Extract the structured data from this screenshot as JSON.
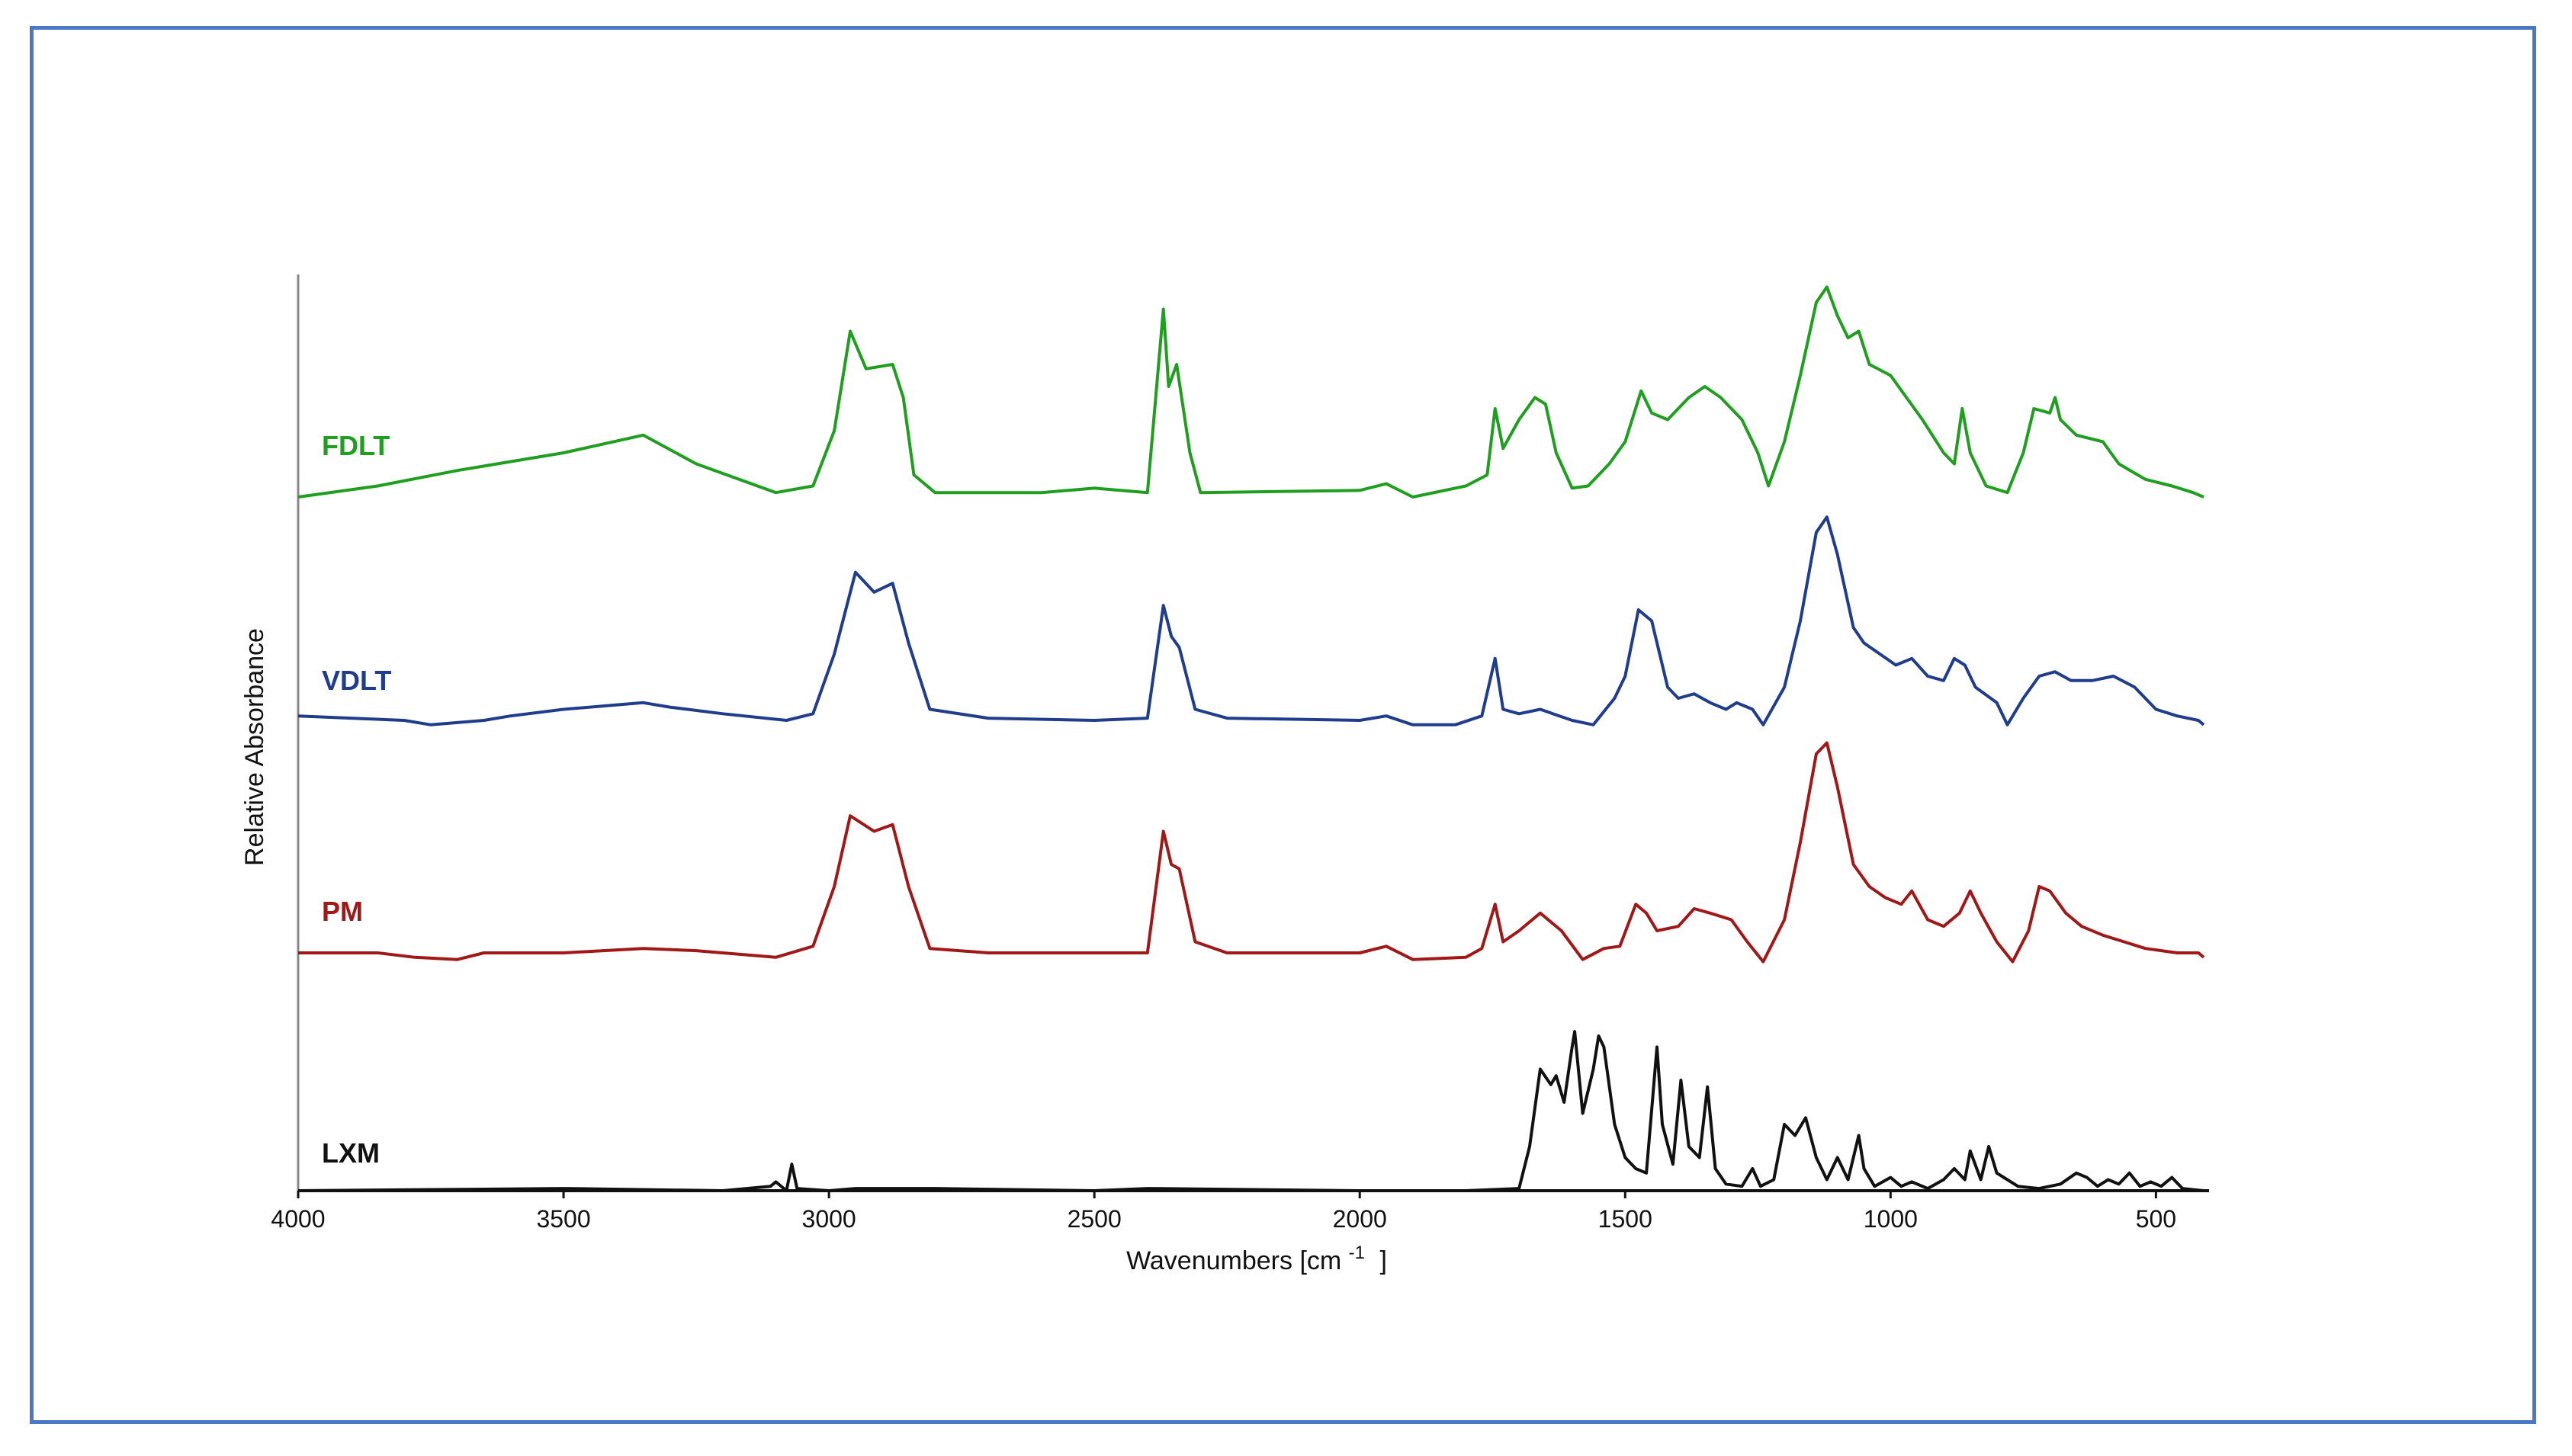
{
  "chart_data": {
    "type": "line",
    "title": "",
    "xlabel": "Wavenumbers [cm",
    "xlabel_sup": "-1",
    "xlabel_tail": "]",
    "ylabel": "Relative Absorbance",
    "xlim": [
      4000,
      400
    ],
    "x_reversed": true,
    "x_ticks": [
      4000,
      3500,
      3000,
      2500,
      2000,
      1500,
      1000,
      500
    ],
    "x_tick_labels": [
      "4000",
      "3500",
      "3000",
      "2500",
      "2000",
      "1500",
      "1000",
      "500"
    ],
    "y_ticks": "none",
    "grid": false,
    "legend": "inline labels at left of each trace",
    "series": [
      {
        "name": "FDLT",
        "color": "#1f9e1f",
        "offset": 3,
        "points": [
          [
            4000,
            0.0
          ],
          [
            3850,
            0.05
          ],
          [
            3700,
            0.12
          ],
          [
            3500,
            0.2
          ],
          [
            3350,
            0.28
          ],
          [
            3250,
            0.15
          ],
          [
            3100,
            0.02
          ],
          [
            3030,
            0.05
          ],
          [
            2990,
            0.3
          ],
          [
            2960,
            0.75
          ],
          [
            2930,
            0.58
          ],
          [
            2880,
            0.6
          ],
          [
            2860,
            0.45
          ],
          [
            2840,
            0.1
          ],
          [
            2800,
            0.02
          ],
          [
            2600,
            0.02
          ],
          [
            2500,
            0.04
          ],
          [
            2400,
            0.02
          ],
          [
            2370,
            0.85
          ],
          [
            2360,
            0.5
          ],
          [
            2345,
            0.6
          ],
          [
            2320,
            0.2
          ],
          [
            2300,
            0.02
          ],
          [
            2000,
            0.03
          ],
          [
            1950,
            0.06
          ],
          [
            1900,
            0.0
          ],
          [
            1800,
            0.05
          ],
          [
            1760,
            0.1
          ],
          [
            1745,
            0.4
          ],
          [
            1730,
            0.22
          ],
          [
            1700,
            0.35
          ],
          [
            1670,
            0.45
          ],
          [
            1650,
            0.42
          ],
          [
            1630,
            0.2
          ],
          [
            1600,
            0.04
          ],
          [
            1570,
            0.05
          ],
          [
            1530,
            0.15
          ],
          [
            1500,
            0.25
          ],
          [
            1470,
            0.48
          ],
          [
            1450,
            0.38
          ],
          [
            1420,
            0.35
          ],
          [
            1380,
            0.45
          ],
          [
            1350,
            0.5
          ],
          [
            1320,
            0.45
          ],
          [
            1280,
            0.35
          ],
          [
            1250,
            0.2
          ],
          [
            1230,
            0.05
          ],
          [
            1200,
            0.25
          ],
          [
            1170,
            0.55
          ],
          [
            1140,
            0.88
          ],
          [
            1120,
            0.95
          ],
          [
            1100,
            0.82
          ],
          [
            1080,
            0.72
          ],
          [
            1060,
            0.75
          ],
          [
            1040,
            0.6
          ],
          [
            1000,
            0.55
          ],
          [
            970,
            0.45
          ],
          [
            940,
            0.35
          ],
          [
            900,
            0.2
          ],
          [
            880,
            0.15
          ],
          [
            865,
            0.4
          ],
          [
            850,
            0.2
          ],
          [
            820,
            0.05
          ],
          [
            780,
            0.02
          ],
          [
            750,
            0.2
          ],
          [
            730,
            0.4
          ],
          [
            700,
            0.38
          ],
          [
            690,
            0.45
          ],
          [
            680,
            0.35
          ],
          [
            650,
            0.28
          ],
          [
            600,
            0.25
          ],
          [
            570,
            0.15
          ],
          [
            520,
            0.08
          ],
          [
            470,
            0.05
          ],
          [
            430,
            0.02
          ],
          [
            410,
            0.0
          ]
        ]
      },
      {
        "name": "VDLT",
        "color": "#1f3d8c",
        "offset": 2,
        "points": [
          [
            4000,
            0.02
          ],
          [
            3800,
            0.0
          ],
          [
            3750,
            -0.02
          ],
          [
            3650,
            0.0
          ],
          [
            3600,
            0.02
          ],
          [
            3500,
            0.05
          ],
          [
            3350,
            0.08
          ],
          [
            3300,
            0.06
          ],
          [
            3200,
            0.03
          ],
          [
            3080,
            0.0
          ],
          [
            3030,
            0.03
          ],
          [
            2990,
            0.3
          ],
          [
            2950,
            0.67
          ],
          [
            2915,
            0.58
          ],
          [
            2880,
            0.62
          ],
          [
            2850,
            0.35
          ],
          [
            2810,
            0.05
          ],
          [
            2700,
            0.01
          ],
          [
            2500,
            0.0
          ],
          [
            2400,
            0.01
          ],
          [
            2370,
            0.52
          ],
          [
            2355,
            0.38
          ],
          [
            2340,
            0.33
          ],
          [
            2310,
            0.05
          ],
          [
            2250,
            0.01
          ],
          [
            2000,
            0.0
          ],
          [
            1950,
            0.02
          ],
          [
            1900,
            -0.02
          ],
          [
            1820,
            -0.02
          ],
          [
            1770,
            0.02
          ],
          [
            1745,
            0.28
          ],
          [
            1730,
            0.05
          ],
          [
            1700,
            0.03
          ],
          [
            1660,
            0.05
          ],
          [
            1600,
            0.0
          ],
          [
            1560,
            -0.02
          ],
          [
            1520,
            0.1
          ],
          [
            1500,
            0.2
          ],
          [
            1475,
            0.5
          ],
          [
            1450,
            0.45
          ],
          [
            1420,
            0.15
          ],
          [
            1400,
            0.1
          ],
          [
            1370,
            0.12
          ],
          [
            1340,
            0.08
          ],
          [
            1310,
            0.05
          ],
          [
            1290,
            0.08
          ],
          [
            1260,
            0.05
          ],
          [
            1240,
            -0.02
          ],
          [
            1200,
            0.15
          ],
          [
            1170,
            0.45
          ],
          [
            1140,
            0.85
          ],
          [
            1120,
            0.92
          ],
          [
            1100,
            0.75
          ],
          [
            1070,
            0.42
          ],
          [
            1050,
            0.35
          ],
          [
            1020,
            0.3
          ],
          [
            990,
            0.25
          ],
          [
            960,
            0.28
          ],
          [
            930,
            0.2
          ],
          [
            900,
            0.18
          ],
          [
            880,
            0.28
          ],
          [
            860,
            0.25
          ],
          [
            840,
            0.15
          ],
          [
            800,
            0.08
          ],
          [
            780,
            -0.02
          ],
          [
            750,
            0.1
          ],
          [
            720,
            0.2
          ],
          [
            690,
            0.22
          ],
          [
            660,
            0.18
          ],
          [
            620,
            0.18
          ],
          [
            580,
            0.2
          ],
          [
            540,
            0.15
          ],
          [
            500,
            0.05
          ],
          [
            460,
            0.02
          ],
          [
            420,
            0.0
          ],
          [
            410,
            -0.02
          ]
        ]
      },
      {
        "name": "PM",
        "color": "#a01818",
        "offset": 1,
        "points": [
          [
            4000,
            0.0
          ],
          [
            3850,
            0.0
          ],
          [
            3780,
            -0.02
          ],
          [
            3700,
            -0.03
          ],
          [
            3650,
            0.0
          ],
          [
            3500,
            0.0
          ],
          [
            3350,
            0.02
          ],
          [
            3250,
            0.01
          ],
          [
            3100,
            -0.02
          ],
          [
            3030,
            0.03
          ],
          [
            2990,
            0.3
          ],
          [
            2960,
            0.62
          ],
          [
            2915,
            0.55
          ],
          [
            2880,
            0.58
          ],
          [
            2850,
            0.3
          ],
          [
            2810,
            0.02
          ],
          [
            2700,
            0.0
          ],
          [
            2500,
            0.0
          ],
          [
            2400,
            0.0
          ],
          [
            2370,
            0.55
          ],
          [
            2355,
            0.4
          ],
          [
            2340,
            0.38
          ],
          [
            2310,
            0.05
          ],
          [
            2250,
            0.0
          ],
          [
            2000,
            0.0
          ],
          [
            1950,
            0.03
          ],
          [
            1900,
            -0.03
          ],
          [
            1800,
            -0.02
          ],
          [
            1770,
            0.02
          ],
          [
            1745,
            0.22
          ],
          [
            1730,
            0.05
          ],
          [
            1700,
            0.1
          ],
          [
            1660,
            0.18
          ],
          [
            1620,
            0.1
          ],
          [
            1580,
            -0.03
          ],
          [
            1540,
            0.02
          ],
          [
            1510,
            0.03
          ],
          [
            1480,
            0.22
          ],
          [
            1460,
            0.18
          ],
          [
            1440,
            0.1
          ],
          [
            1400,
            0.12
          ],
          [
            1370,
            0.2
          ],
          [
            1340,
            0.18
          ],
          [
            1300,
            0.15
          ],
          [
            1270,
            0.05
          ],
          [
            1240,
            -0.04
          ],
          [
            1200,
            0.15
          ],
          [
            1170,
            0.5
          ],
          [
            1140,
            0.9
          ],
          [
            1120,
            0.95
          ],
          [
            1100,
            0.75
          ],
          [
            1070,
            0.4
          ],
          [
            1040,
            0.3
          ],
          [
            1010,
            0.25
          ],
          [
            980,
            0.22
          ],
          [
            960,
            0.28
          ],
          [
            930,
            0.15
          ],
          [
            900,
            0.12
          ],
          [
            870,
            0.18
          ],
          [
            850,
            0.28
          ],
          [
            830,
            0.18
          ],
          [
            800,
            0.05
          ],
          [
            770,
            -0.04
          ],
          [
            740,
            0.1
          ],
          [
            720,
            0.3
          ],
          [
            700,
            0.28
          ],
          [
            670,
            0.18
          ],
          [
            640,
            0.12
          ],
          [
            600,
            0.08
          ],
          [
            560,
            0.05
          ],
          [
            520,
            0.02
          ],
          [
            460,
            0.0
          ],
          [
            420,
            0.0
          ],
          [
            410,
            -0.02
          ]
        ]
      },
      {
        "name": "LXM",
        "color": "#111111",
        "offset": 0,
        "points": [
          [
            4000,
            0.0
          ],
          [
            3500,
            0.01
          ],
          [
            3200,
            0.0
          ],
          [
            3110,
            0.02
          ],
          [
            3100,
            0.04
          ],
          [
            3080,
            0.0
          ],
          [
            3070,
            0.12
          ],
          [
            3060,
            0.01
          ],
          [
            3000,
            0.0
          ],
          [
            2950,
            0.01
          ],
          [
            2800,
            0.01
          ],
          [
            2500,
            0.0
          ],
          [
            2400,
            0.01
          ],
          [
            2000,
            0.0
          ],
          [
            1800,
            0.0
          ],
          [
            1700,
            0.01
          ],
          [
            1680,
            0.2
          ],
          [
            1660,
            0.55
          ],
          [
            1640,
            0.48
          ],
          [
            1630,
            0.52
          ],
          [
            1615,
            0.4
          ],
          [
            1600,
            0.65
          ],
          [
            1595,
            0.72
          ],
          [
            1580,
            0.35
          ],
          [
            1560,
            0.55
          ],
          [
            1550,
            0.7
          ],
          [
            1540,
            0.65
          ],
          [
            1520,
            0.3
          ],
          [
            1500,
            0.15
          ],
          [
            1480,
            0.1
          ],
          [
            1460,
            0.08
          ],
          [
            1440,
            0.65
          ],
          [
            1430,
            0.3
          ],
          [
            1410,
            0.12
          ],
          [
            1395,
            0.5
          ],
          [
            1380,
            0.2
          ],
          [
            1360,
            0.15
          ],
          [
            1345,
            0.47
          ],
          [
            1330,
            0.1
          ],
          [
            1310,
            0.03
          ],
          [
            1280,
            0.02
          ],
          [
            1260,
            0.1
          ],
          [
            1245,
            0.02
          ],
          [
            1220,
            0.05
          ],
          [
            1200,
            0.3
          ],
          [
            1180,
            0.25
          ],
          [
            1160,
            0.33
          ],
          [
            1140,
            0.15
          ],
          [
            1120,
            0.05
          ],
          [
            1100,
            0.15
          ],
          [
            1080,
            0.05
          ],
          [
            1060,
            0.25
          ],
          [
            1050,
            0.1
          ],
          [
            1030,
            0.02
          ],
          [
            1000,
            0.06
          ],
          [
            980,
            0.02
          ],
          [
            960,
            0.04
          ],
          [
            930,
            0.01
          ],
          [
            900,
            0.05
          ],
          [
            880,
            0.1
          ],
          [
            860,
            0.05
          ],
          [
            850,
            0.18
          ],
          [
            830,
            0.05
          ],
          [
            815,
            0.2
          ],
          [
            800,
            0.08
          ],
          [
            780,
            0.05
          ],
          [
            760,
            0.02
          ],
          [
            720,
            0.01
          ],
          [
            680,
            0.03
          ],
          [
            650,
            0.08
          ],
          [
            630,
            0.06
          ],
          [
            610,
            0.02
          ],
          [
            590,
            0.05
          ],
          [
            570,
            0.03
          ],
          [
            550,
            0.08
          ],
          [
            530,
            0.02
          ],
          [
            510,
            0.04
          ],
          [
            490,
            0.02
          ],
          [
            470,
            0.06
          ],
          [
            450,
            0.01
          ],
          [
            410,
            0.0
          ]
        ]
      }
    ]
  }
}
